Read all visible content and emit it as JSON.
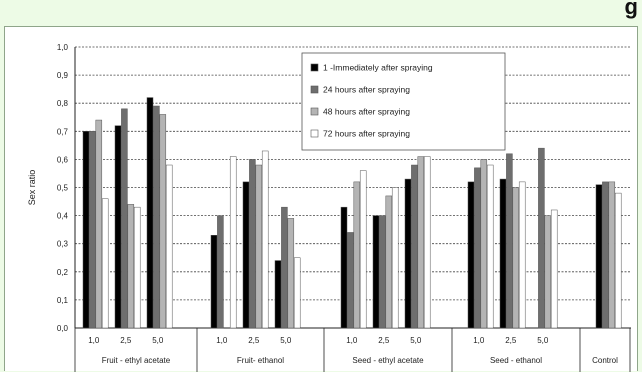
{
  "chart_data": {
    "type": "bar",
    "ylabel": "Sex ratio",
    "ylim": [
      0,
      1
    ],
    "yticks": [
      "0,0",
      "0,1",
      "0,2",
      "0,3",
      "0,4",
      "0,5",
      "0,6",
      "0,7",
      "0,8",
      "0,9",
      "1,0"
    ],
    "grid": true,
    "legend_position": "top-center",
    "groups": [
      {
        "name": "Fruit - ethyl acetate",
        "subcategories": [
          "1,0",
          "2,5",
          "5,0"
        ]
      },
      {
        "name": "Fruit- ethanol",
        "subcategories": [
          "1,0",
          "2,5",
          "5,0"
        ]
      },
      {
        "name": "Seed - ethyl acetate",
        "subcategories": [
          "1,0",
          "2,5",
          "5,0"
        ]
      },
      {
        "name": "Seed - ethanol",
        "subcategories": [
          "1,0",
          "2,5",
          "5,0"
        ]
      },
      {
        "name": "Control",
        "subcategories": [
          ""
        ]
      }
    ],
    "series": [
      {
        "name": "1 -Immediately after spraying",
        "color": "#000000",
        "values": [
          0.7,
          0.72,
          0.82,
          0.33,
          0.52,
          0.24,
          0.43,
          0.4,
          0.53,
          0.52,
          0.53,
          0.0,
          0.51
        ]
      },
      {
        "name": "24 hours after spraying",
        "color": "#6e6e6e",
        "values": [
          0.7,
          0.78,
          0.79,
          0.4,
          0.6,
          0.43,
          0.34,
          0.4,
          0.58,
          0.57,
          0.62,
          0.64,
          0.52
        ]
      },
      {
        "name": "48 hours after spraying",
        "color": "#b4b4b4",
        "values": [
          0.74,
          0.44,
          0.76,
          0.0,
          0.58,
          0.39,
          0.52,
          0.47,
          0.61,
          0.6,
          0.5,
          0.4,
          0.52
        ]
      },
      {
        "name": "72 hours after spraying",
        "color": "#ffffff",
        "values": [
          0.46,
          0.43,
          0.58,
          0.61,
          0.63,
          0.25,
          0.56,
          0.5,
          0.61,
          0.58,
          0.52,
          0.42,
          0.48
        ]
      }
    ]
  },
  "colors": {
    "page_bg": "#edfbe6",
    "bar_outline": "#555555",
    "grid": "#444444"
  }
}
